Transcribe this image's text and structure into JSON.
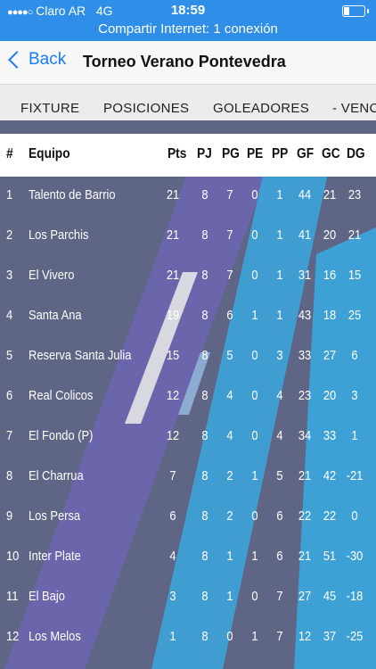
{
  "status_bar": {
    "carrier": "Claro AR",
    "network": "4G",
    "time": "18:59",
    "hotspot": "Compartir Internet: 1 conexión"
  },
  "nav": {
    "back_label": "Back",
    "title": "Torneo Verano Pontevedra"
  },
  "tabs": [
    {
      "label": "FIXTURE"
    },
    {
      "label": "POSICIONES"
    },
    {
      "label": "GOLEADORES"
    },
    {
      "label": "- VENC"
    }
  ],
  "table": {
    "headers": [
      "#",
      "Equipo",
      "Pts",
      "PJ",
      "PG",
      "PE",
      "PP",
      "GF",
      "GC",
      "DG"
    ],
    "rows": [
      [
        "1",
        "Talento de Barrio",
        "21",
        "8",
        "7",
        "0",
        "1",
        "44",
        "21",
        "23"
      ],
      [
        "2",
        "Los Parchis",
        "21",
        "8",
        "7",
        "0",
        "1",
        "41",
        "20",
        "21"
      ],
      [
        "3",
        "El Vivero",
        "21",
        "8",
        "7",
        "0",
        "1",
        "31",
        "16",
        "15"
      ],
      [
        "4",
        "Santa Ana",
        "19",
        "8",
        "6",
        "1",
        "1",
        "43",
        "18",
        "25"
      ],
      [
        "5",
        "Reserva Santa Julia",
        "15",
        "8",
        "5",
        "0",
        "3",
        "33",
        "27",
        "6"
      ],
      [
        "6",
        "Real Colicos",
        "12",
        "8",
        "4",
        "0",
        "4",
        "23",
        "20",
        "3"
      ],
      [
        "7",
        "El Fondo (P)",
        "12",
        "8",
        "4",
        "0",
        "4",
        "34",
        "33",
        "1"
      ],
      [
        "8",
        "El Charrua",
        "7",
        "8",
        "2",
        "1",
        "5",
        "21",
        "42",
        "-21"
      ],
      [
        "9",
        "Los Persa",
        "6",
        "8",
        "2",
        "0",
        "6",
        "22",
        "22",
        "0"
      ],
      [
        "10",
        "Inter Plate",
        "4",
        "8",
        "1",
        "1",
        "6",
        "21",
        "51",
        "-30"
      ],
      [
        "11",
        "El Bajo",
        "3",
        "8",
        "1",
        "0",
        "7",
        "27",
        "45",
        "-18"
      ],
      [
        "12",
        "Los Melos",
        "1",
        "8",
        "0",
        "1",
        "7",
        "12",
        "37",
        "-25"
      ]
    ]
  },
  "colors": {
    "status_bar": "#2f8fe8",
    "table_bg": "#5f6685",
    "accent_link": "#1a7cf5"
  }
}
